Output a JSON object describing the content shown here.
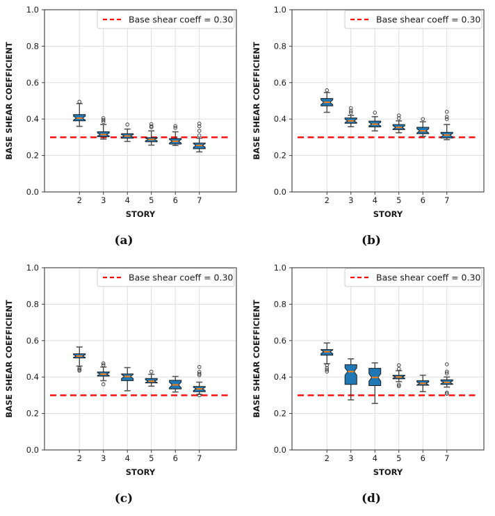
{
  "figure": {
    "legend_label": "Base shear coeff = 0.30",
    "xlabel": "STORY",
    "ylabel": "BASE SHEAR COEFFICIENT",
    "x_tick_labels": [
      "2",
      "3",
      "4",
      "5",
      "6",
      "7"
    ],
    "y_tick_labels": [
      "0.0",
      "0.2",
      "0.4",
      "0.6",
      "0.8",
      "1.0"
    ],
    "colors": {
      "box_fill": "#1f77b4",
      "box_edge": "#1c1c1c",
      "median": "#ff7f0e",
      "whisker": "#2b2b2b",
      "cap": "#555555",
      "flier_edge": "#333333",
      "grid": "#d9d9d9",
      "spine": "#3a3a3a",
      "tick_text": "#1a1a1a",
      "reference": "#ff0000",
      "legend_border": "#cccccc",
      "legend_bg": "#ffffff"
    }
  },
  "chart_data": [
    {
      "type": "box",
      "caption": "(a)",
      "xlabel": "STORY",
      "ylabel": "BASE SHEAR COEFFICIENT",
      "categories": [
        "2",
        "3",
        "4",
        "5",
        "6",
        "7"
      ],
      "ylim": [
        0.0,
        1.0
      ],
      "y_ticks": [
        0.0,
        0.2,
        0.4,
        0.6,
        0.8,
        1.0
      ],
      "grid": true,
      "legend": {
        "label": "Base shear coeff = 0.30",
        "position": "upper right"
      },
      "reference_line": 0.3,
      "boxes": [
        {
          "story": "2",
          "whislo": 0.36,
          "q1": 0.39,
          "med": 0.405,
          "q3": 0.425,
          "whishi": 0.485,
          "fliers": [
            0.495
          ]
        },
        {
          "story": "3",
          "whislo": 0.29,
          "q1": 0.303,
          "med": 0.315,
          "q3": 0.33,
          "whishi": 0.37,
          "fliers": [
            0.385,
            0.395,
            0.405
          ]
        },
        {
          "story": "4",
          "whislo": 0.277,
          "q1": 0.295,
          "med": 0.307,
          "q3": 0.32,
          "whishi": 0.345,
          "fliers": [
            0.37
          ]
        },
        {
          "story": "5",
          "whislo": 0.257,
          "q1": 0.275,
          "med": 0.288,
          "q3": 0.298,
          "whishi": 0.335,
          "fliers": [
            0.355,
            0.36,
            0.372
          ]
        },
        {
          "story": "6",
          "whislo": 0.255,
          "q1": 0.263,
          "med": 0.278,
          "q3": 0.293,
          "whishi": 0.33,
          "fliers": [
            0.352,
            0.362
          ]
        },
        {
          "story": "7",
          "whislo": 0.22,
          "q1": 0.237,
          "med": 0.255,
          "q3": 0.268,
          "whishi": 0.295,
          "fliers": [
            0.31,
            0.335,
            0.36,
            0.375
          ]
        }
      ]
    },
    {
      "type": "box",
      "caption": "(b)",
      "xlabel": "STORY",
      "ylabel": "BASE SHEAR COEFFICIENT",
      "categories": [
        "2",
        "3",
        "4",
        "5",
        "6",
        "7"
      ],
      "ylim": [
        0.0,
        1.0
      ],
      "y_ticks": [
        0.0,
        0.2,
        0.4,
        0.6,
        0.8,
        1.0
      ],
      "grid": true,
      "legend": {
        "label": "Base shear coeff = 0.30",
        "position": "upper right"
      },
      "reference_line": 0.3,
      "boxes": [
        {
          "story": "2",
          "whislo": 0.437,
          "q1": 0.472,
          "med": 0.492,
          "q3": 0.513,
          "whishi": 0.545,
          "fliers": [
            0.558
          ]
        },
        {
          "story": "3",
          "whislo": 0.358,
          "q1": 0.377,
          "med": 0.39,
          "q3": 0.406,
          "whishi": 0.42,
          "fliers": [
            0.435,
            0.445,
            0.46
          ]
        },
        {
          "story": "4",
          "whislo": 0.335,
          "q1": 0.357,
          "med": 0.372,
          "q3": 0.389,
          "whishi": 0.413,
          "fliers": [
            0.435
          ]
        },
        {
          "story": "5",
          "whislo": 0.325,
          "q1": 0.342,
          "med": 0.354,
          "q3": 0.37,
          "whishi": 0.39,
          "fliers": [
            0.405,
            0.42
          ]
        },
        {
          "story": "6",
          "whislo": 0.305,
          "q1": 0.32,
          "med": 0.335,
          "q3": 0.355,
          "whishi": 0.385,
          "fliers": [
            0.4
          ]
        },
        {
          "story": "7",
          "whislo": 0.287,
          "q1": 0.296,
          "med": 0.312,
          "q3": 0.327,
          "whishi": 0.37,
          "fliers": [
            0.4,
            0.412,
            0.44
          ]
        }
      ]
    },
    {
      "type": "box",
      "caption": "(c)",
      "xlabel": "STORY",
      "ylabel": "BASE SHEAR COEFFICIENT",
      "categories": [
        "2",
        "3",
        "4",
        "5",
        "6",
        "7"
      ],
      "ylim": [
        0.0,
        1.0
      ],
      "y_ticks": [
        0.0,
        0.2,
        0.4,
        0.6,
        0.8,
        1.0
      ],
      "grid": true,
      "legend": {
        "label": "Base shear coeff = 0.30",
        "position": "upper right"
      },
      "reference_line": 0.3,
      "boxes": [
        {
          "story": "2",
          "whislo": 0.46,
          "q1": 0.505,
          "med": 0.515,
          "q3": 0.528,
          "whishi": 0.565,
          "fliers": [
            0.435,
            0.441,
            0.448
          ]
        },
        {
          "story": "3",
          "whislo": 0.38,
          "q1": 0.405,
          "med": 0.416,
          "q3": 0.428,
          "whishi": 0.455,
          "fliers": [
            0.36,
            0.465,
            0.475
          ]
        },
        {
          "story": "4",
          "whislo": 0.325,
          "q1": 0.38,
          "med": 0.403,
          "q3": 0.417,
          "whishi": 0.452,
          "fliers": []
        },
        {
          "story": "5",
          "whislo": 0.35,
          "q1": 0.368,
          "med": 0.377,
          "q3": 0.392,
          "whishi": 0.415,
          "fliers": [
            0.43
          ]
        },
        {
          "story": "6",
          "whislo": 0.318,
          "q1": 0.335,
          "med": 0.357,
          "q3": 0.382,
          "whishi": 0.403,
          "fliers": []
        },
        {
          "story": "7",
          "whislo": 0.305,
          "q1": 0.32,
          "med": 0.335,
          "q3": 0.348,
          "whishi": 0.372,
          "fliers": [
            0.3,
            0.41,
            0.418,
            0.428,
            0.455
          ]
        }
      ]
    },
    {
      "type": "box",
      "caption": "(d)",
      "xlabel": "STORY",
      "ylabel": "BASE SHEAR COEFFICIENT",
      "categories": [
        "2",
        "3",
        "4",
        "5",
        "6",
        "7"
      ],
      "ylim": [
        0.0,
        1.0
      ],
      "y_ticks": [
        0.0,
        0.2,
        0.4,
        0.6,
        0.8,
        1.0
      ],
      "grid": true,
      "legend": {
        "label": "Base shear coeff = 0.30",
        "position": "upper right"
      },
      "reference_line": 0.3,
      "boxes": [
        {
          "story": "2",
          "whislo": 0.473,
          "q1": 0.52,
          "med": 0.539,
          "q3": 0.551,
          "whishi": 0.587,
          "fliers": [
            0.43,
            0.44,
            0.45,
            0.465
          ]
        },
        {
          "story": "3",
          "whislo": 0.275,
          "q1": 0.36,
          "med": 0.43,
          "q3": 0.468,
          "whishi": 0.5,
          "fliers": []
        },
        {
          "story": "4",
          "whislo": 0.255,
          "q1": 0.353,
          "med": 0.398,
          "q3": 0.448,
          "whishi": 0.478,
          "fliers": []
        },
        {
          "story": "5",
          "whislo": 0.375,
          "q1": 0.39,
          "med": 0.4,
          "q3": 0.41,
          "whishi": 0.435,
          "fliers": [
            0.35,
            0.358,
            0.445,
            0.465
          ]
        },
        {
          "story": "6",
          "whislo": 0.32,
          "q1": 0.355,
          "med": 0.365,
          "q3": 0.38,
          "whishi": 0.41,
          "fliers": []
        },
        {
          "story": "7",
          "whislo": 0.345,
          "q1": 0.36,
          "med": 0.371,
          "q3": 0.385,
          "whishi": 0.4,
          "fliers": [
            0.308,
            0.315,
            0.42,
            0.43,
            0.47
          ]
        }
      ]
    }
  ]
}
